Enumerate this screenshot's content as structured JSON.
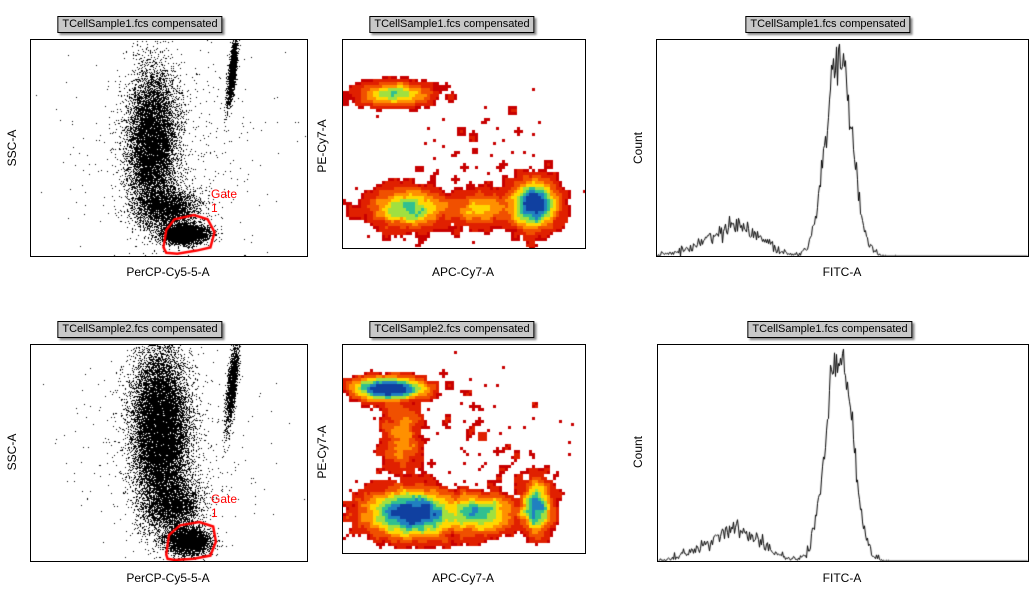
{
  "chart_data": [
    {
      "type": "scatter",
      "title": "TCellSample1.fcs compensated",
      "xlabel": "PerCP-Cy5-5-A",
      "ylabel": "SSC-A",
      "xlim": [
        0,
        1000
      ],
      "ylim": [
        0,
        1000
      ],
      "populations": [
        {
          "x": 440,
          "y": 520,
          "sx": 45,
          "sy": 170,
          "n": 9000
        },
        {
          "x": 500,
          "y": 220,
          "sx": 55,
          "sy": 45,
          "n": 2500
        },
        {
          "x": 560,
          "y": 100,
          "sx": 40,
          "sy": 22,
          "n": 4000
        },
        {
          "x": 730,
          "y": 850,
          "sx": 7,
          "sy": 80,
          "slope": 0.08,
          "n": 1500
        },
        {
          "x": 500,
          "y": 500,
          "sx": 160,
          "sy": 250,
          "n": 600
        }
      ],
      "gate": {
        "name": "Gate 1",
        "color": "#ff0000",
        "vertices": [
          [
            480,
            40
          ],
          [
            490,
            120
          ],
          [
            520,
            170
          ],
          [
            590,
            190
          ],
          [
            640,
            170
          ],
          [
            665,
            110
          ],
          [
            650,
            40
          ],
          [
            600,
            25
          ],
          [
            530,
            10
          ],
          [
            490,
            15
          ]
        ]
      }
    },
    {
      "type": "density",
      "title": "TCellSample1.fcs compensated",
      "xlabel": "APC-Cy7-A",
      "ylabel": "PE-Cy7-A",
      "xlim": [
        0,
        1000
      ],
      "ylim": [
        0,
        1000
      ],
      "populations": [
        {
          "x": 210,
          "y": 740,
          "sx": 70,
          "sy": 25,
          "n": 900
        },
        {
          "x": 270,
          "y": 190,
          "sx": 80,
          "sy": 45,
          "n": 1800
        },
        {
          "x": 560,
          "y": 190,
          "sx": 60,
          "sy": 40,
          "n": 600
        },
        {
          "x": 790,
          "y": 210,
          "sx": 45,
          "sy": 55,
          "n": 3000
        },
        {
          "x": 550,
          "y": 450,
          "sx": 200,
          "sy": 200,
          "n": 80
        }
      ]
    },
    {
      "type": "histogram",
      "title": "TCellSample1.fcs compensated",
      "xlabel": "FITC-A",
      "ylabel": "Count",
      "xlim": [
        0,
        1000
      ],
      "populations": [
        {
          "x": 490,
          "sx": 35,
          "n": 9000
        },
        {
          "x": 220,
          "sx": 60,
          "n": 2200
        },
        {
          "x": 120,
          "sx": 60,
          "n": 500
        }
      ]
    },
    {
      "type": "scatter",
      "title": "TCellSample2.fcs compensated",
      "xlabel": "PerCP-Cy5-5-A",
      "ylabel": "SSC-A",
      "xlim": [
        0,
        1000
      ],
      "ylim": [
        0,
        1000
      ],
      "populations": [
        {
          "x": 470,
          "y": 600,
          "sx": 50,
          "sy": 190,
          "n": 14000
        },
        {
          "x": 520,
          "y": 260,
          "sx": 50,
          "sy": 60,
          "n": 2500
        },
        {
          "x": 570,
          "y": 90,
          "sx": 40,
          "sy": 30,
          "n": 3500
        },
        {
          "x": 730,
          "y": 820,
          "sx": 8,
          "sy": 100,
          "slope": 0.08,
          "n": 1800
        },
        {
          "x": 500,
          "y": 500,
          "sx": 160,
          "sy": 250,
          "n": 600
        }
      ],
      "gate": {
        "name": "Gate 1",
        "color": "#ff0000",
        "vertices": [
          [
            490,
            30
          ],
          [
            500,
            120
          ],
          [
            540,
            165
          ],
          [
            610,
            180
          ],
          [
            660,
            160
          ],
          [
            670,
            90
          ],
          [
            650,
            25
          ],
          [
            590,
            10
          ],
          [
            520,
            5
          ],
          [
            495,
            10
          ]
        ]
      }
    },
    {
      "type": "density",
      "title": "TCellSample2.fcs compensated",
      "xlabel": "APC-Cy7-A",
      "ylabel": "PE-Cy7-A",
      "xlim": [
        0,
        1000
      ],
      "ylim": [
        0,
        1000
      ],
      "populations": [
        {
          "x": 190,
          "y": 790,
          "sx": 75,
          "sy": 25,
          "n": 1600
        },
        {
          "x": 240,
          "y": 560,
          "sx": 40,
          "sy": 90,
          "n": 400
        },
        {
          "x": 280,
          "y": 190,
          "sx": 90,
          "sy": 55,
          "n": 3500
        },
        {
          "x": 560,
          "y": 190,
          "sx": 70,
          "sy": 45,
          "n": 1200
        },
        {
          "x": 800,
          "y": 220,
          "sx": 30,
          "sy": 60,
          "n": 900
        },
        {
          "x": 600,
          "y": 600,
          "sx": 180,
          "sy": 150,
          "n": 80
        }
      ]
    },
    {
      "type": "histogram",
      "title": "TCellSample1.fcs compensated",
      "xlabel": "FITC-A",
      "ylabel": "Count",
      "xlim": [
        0,
        1000
      ],
      "populations": [
        {
          "x": 490,
          "sx": 35,
          "n": 9000
        },
        {
          "x": 220,
          "sx": 60,
          "n": 2200
        },
        {
          "x": 120,
          "sx": 60,
          "n": 500
        }
      ]
    }
  ]
}
